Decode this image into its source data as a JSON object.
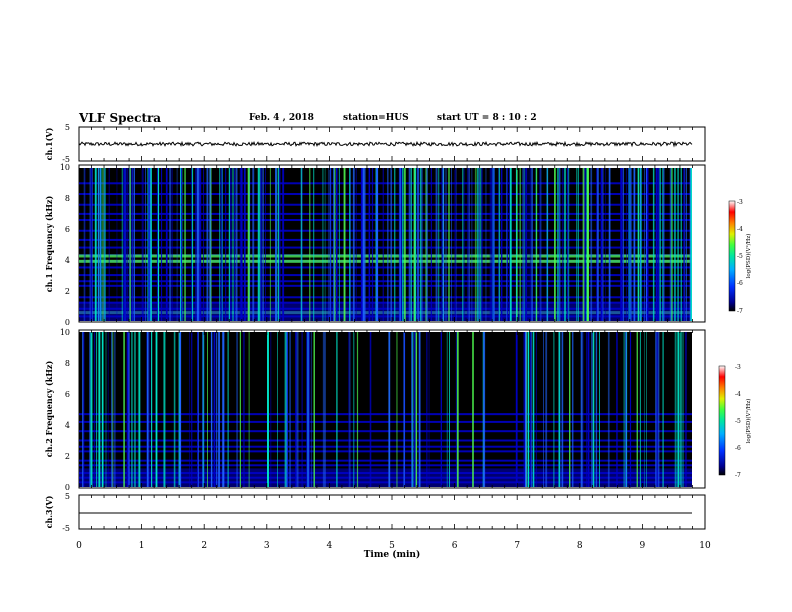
{
  "header": {
    "title": "VLF Spectra",
    "date": "Feb. 4 , 2018",
    "station": "station=HUS",
    "start": "start  UT  =  8 : 10 : 2"
  },
  "chart_data": [
    {
      "type": "line",
      "panel": "ch1-waveform",
      "ylabel": "ch.1(V)",
      "yticks": [
        "5",
        "-5"
      ],
      "ylim": [
        -5,
        5
      ],
      "xlim": [
        0,
        10
      ],
      "series": [
        {
          "values_approx": 0.0,
          "noise_amplitude": 0.6
        }
      ],
      "color": "#000000"
    },
    {
      "type": "heatmap",
      "panel": "ch1-spectrogram",
      "ylabel": "ch.1  Frequency  (kHz)",
      "ylim": [
        0,
        10
      ],
      "yticks": [
        "0",
        "2",
        "4",
        "6",
        "8",
        "10"
      ],
      "xlim": [
        0,
        9.85
      ],
      "colorbar": {
        "label": "log(PSD)(V²/Hz)",
        "ticks": [
          "-3",
          "-4",
          "-5",
          "-6",
          "-7"
        ],
        "range": [
          -7,
          -3
        ]
      },
      "horizontal_lines_khz": [
        0.3,
        0.55,
        0.8,
        1.2,
        1.55,
        2.3,
        2.6,
        3.0,
        3.5,
        3.9,
        4.3,
        4.8,
        5.3,
        5.9,
        6.6,
        7.0,
        7.6,
        8.3,
        9.0
      ],
      "bright_lines_khz": [
        0.55,
        4.25,
        3.9
      ]
    },
    {
      "type": "heatmap",
      "panel": "ch2-spectrogram",
      "ylabel": "ch.2  Frequency  (kHz)",
      "ylim": [
        0,
        10
      ],
      "yticks": [
        "0",
        "2",
        "4",
        "6",
        "8",
        "10"
      ],
      "xlim": [
        0,
        9.85
      ],
      "colorbar": {
        "label": "log(PSD)(V²/Hz)",
        "ticks": [
          "-3",
          "-4",
          "-5",
          "-6",
          "-7"
        ],
        "range": [
          -7,
          -3
        ]
      },
      "horizontal_lines_khz": [
        0.3,
        0.6,
        0.9,
        1.4,
        1.7,
        2.3,
        2.6,
        3.0,
        3.6,
        4.2,
        4.7
      ]
    },
    {
      "type": "line",
      "panel": "ch3-waveform",
      "ylabel": "ch.3(V)",
      "yticks": [
        "5",
        "-5"
      ],
      "ylim": [
        -5,
        5
      ],
      "xlim": [
        0,
        9.85
      ],
      "series": [
        {
          "values_approx": 0.0,
          "noise_amplitude": 0.0
        }
      ],
      "color": "#000000"
    }
  ],
  "x_axis": {
    "label": "Time  (min)",
    "ticks": [
      "0",
      "1",
      "2",
      "3",
      "4",
      "5",
      "6",
      "7",
      "8",
      "9",
      "10"
    ],
    "range": [
      0,
      10
    ]
  },
  "colors": {
    "spectro_background": "#000000",
    "spectro_low": "#0000c8",
    "spectro_mid": "#1e64ff",
    "spectro_high": "#00e6c8",
    "spectro_peak": "#50ff50"
  }
}
